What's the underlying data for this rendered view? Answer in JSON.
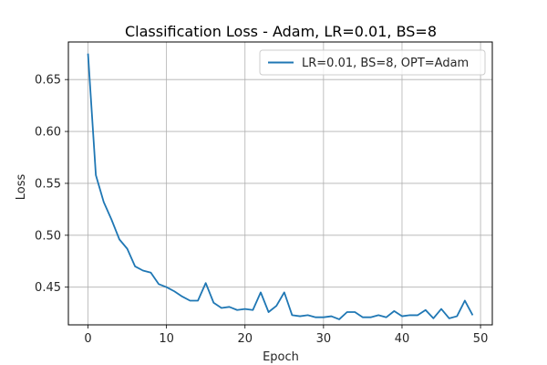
{
  "chart_data": {
    "type": "line",
    "title": "Classification Loss - Adam, LR=0.01, BS=8",
    "xlabel": "Epoch",
    "ylabel": "Loss",
    "xlim": [
      -2.5,
      51.5
    ],
    "ylim": [
      0.4137,
      0.6862
    ],
    "xticks": [
      0,
      10,
      20,
      30,
      40,
      50
    ],
    "yticks": [
      0.45,
      0.5,
      0.55,
      0.6,
      0.65
    ],
    "xtick_labels": [
      "0",
      "10",
      "20",
      "30",
      "40",
      "50"
    ],
    "ytick_labels": [
      "0.45",
      "0.50",
      "0.55",
      "0.60",
      "0.65"
    ],
    "grid": true,
    "legend": {
      "placement": "top-right"
    },
    "series": [
      {
        "name": "LR=0.01, BS=8, OPT=Adam",
        "color": "#1f77b4",
        "x": [
          0,
          1,
          2,
          3,
          4,
          5,
          6,
          7,
          8,
          9,
          10,
          11,
          12,
          13,
          14,
          15,
          16,
          17,
          18,
          19,
          20,
          21,
          22,
          23,
          24,
          25,
          26,
          27,
          28,
          29,
          30,
          31,
          32,
          33,
          34,
          35,
          36,
          37,
          38,
          39,
          40,
          41,
          42,
          43,
          44,
          45,
          46,
          47,
          48,
          49
        ],
        "values": [
          0.675,
          0.558,
          0.532,
          0.515,
          0.496,
          0.487,
          0.47,
          0.466,
          0.464,
          0.453,
          0.45,
          0.446,
          0.441,
          0.437,
          0.437,
          0.454,
          0.435,
          0.43,
          0.431,
          0.428,
          0.429,
          0.428,
          0.445,
          0.426,
          0.432,
          0.445,
          0.423,
          0.422,
          0.423,
          0.421,
          0.421,
          0.422,
          0.419,
          0.426,
          0.426,
          0.421,
          0.421,
          0.423,
          0.421,
          0.427,
          0.422,
          0.423,
          0.423,
          0.428,
          0.42,
          0.429,
          0.42,
          0.422,
          0.437,
          0.423
        ]
      }
    ]
  }
}
